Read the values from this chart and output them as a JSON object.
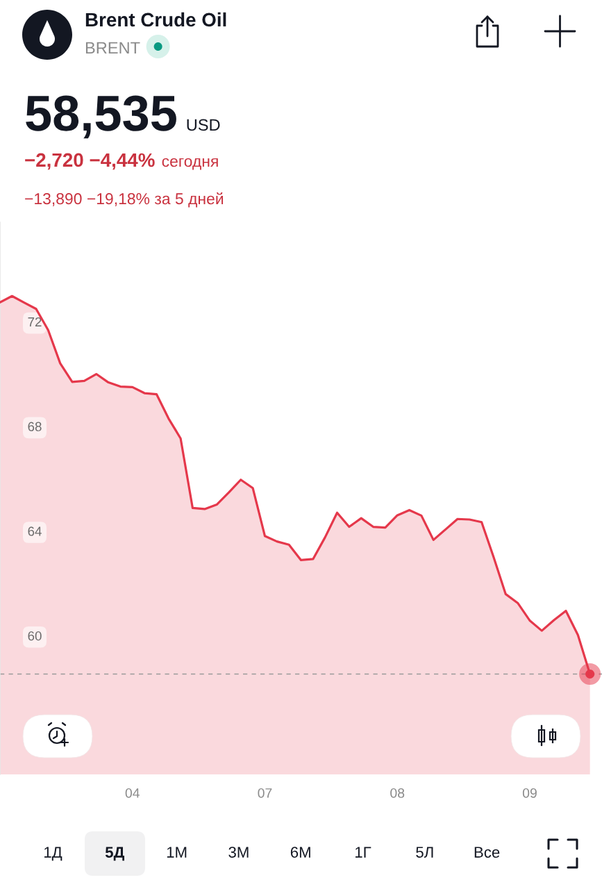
{
  "chart_data": {
    "type": "area",
    "title": "Brent Crude Oil",
    "subtitle": "BRENT",
    "categories": [
      null,
      null,
      null,
      null,
      null,
      null,
      null,
      null,
      null,
      null,
      null,
      "04",
      null,
      null,
      null,
      null,
      null,
      null,
      null,
      null,
      null,
      null,
      "07",
      null,
      null,
      null,
      null,
      null,
      null,
      null,
      null,
      null,
      null,
      "08",
      null,
      null,
      null,
      null,
      null,
      null,
      null,
      null,
      null,
      null,
      "09",
      null,
      null,
      null,
      null,
      null
    ],
    "series": [
      {
        "color": "#e5384b",
        "values": [
          72.74,
          72.98,
          72.73,
          72.49,
          71.68,
          70.41,
          69.7,
          69.74,
          70.0,
          69.68,
          69.52,
          69.5,
          69.27,
          69.23,
          68.3,
          67.54,
          64.88,
          64.84,
          65.01,
          65.47,
          65.96,
          65.64,
          63.81,
          63.6,
          63.48,
          62.89,
          62.93,
          63.76,
          64.7,
          64.16,
          64.49,
          64.16,
          64.13,
          64.6,
          64.8,
          64.59,
          63.66,
          64.06,
          64.46,
          64.44,
          64.34,
          63.0,
          61.59,
          61.25,
          60.58,
          60.19,
          60.59,
          60.95,
          60.03,
          58.535
        ]
      },
      {
        "type": "scatter",
        "color": "#e5384b",
        "values": [
          null,
          null,
          null,
          null,
          null,
          null,
          null,
          null,
          null,
          null,
          null,
          null,
          null,
          null,
          null,
          null,
          null,
          null,
          null,
          null,
          null,
          null,
          null,
          null,
          null,
          null,
          null,
          null,
          null,
          null,
          null,
          null,
          null,
          null,
          null,
          null,
          null,
          null,
          null,
          null,
          null,
          null,
          null,
          null,
          null,
          null,
          null,
          null,
          null,
          58.535
        ]
      }
    ],
    "ylim": [
      54.7,
      75.8
    ],
    "yticks": [
      60,
      64,
      68,
      72
    ],
    "ref_lines": [
      {
        "axis": "y",
        "value": 58.535,
        "color": "#9a9a9a",
        "line_style": "dashed"
      }
    ],
    "annotations": [
      "58,535",
      "USD",
      "−2,720 −4,44%",
      "сегодня",
      "−13,890 −19,18% за 5 дней",
      "1Д",
      "5Д",
      "1М",
      "3М",
      "6М",
      "1Г",
      "5Л",
      "Все"
    ]
  }
}
